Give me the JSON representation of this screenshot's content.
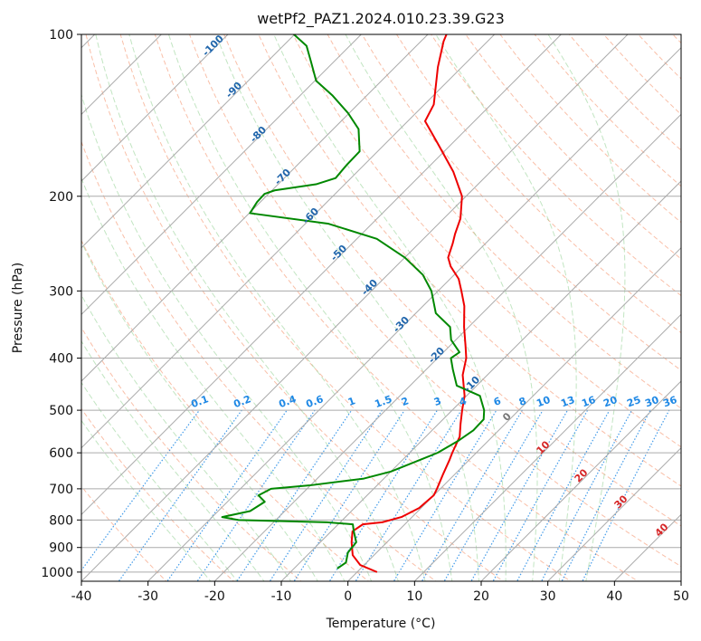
{
  "chart_data": {
    "type": "line",
    "title": "wetPf2_PAZ1.2024.010.23.39.G23",
    "xlabel": "Temperature (°C)",
    "ylabel": "Pressure (hPa)",
    "xlim": [
      -40,
      50
    ],
    "ylim": [
      1040,
      100
    ],
    "y_scale": "log",
    "skew": true,
    "grid": true,
    "x_ticks": [
      "-40",
      "-30",
      "-20",
      "-10",
      "0",
      "10",
      "20",
      "30",
      "40",
      "50"
    ],
    "y_ticks": [
      "100",
      "200",
      "300",
      "400",
      "500",
      "600",
      "700",
      "800",
      "900",
      "1000"
    ],
    "series": [
      {
        "color": "#ee0000",
        "points": [
          [
            1000,
            3
          ],
          [
            970,
            -0.6
          ],
          [
            930,
            -3.2
          ],
          [
            880,
            -5.3
          ],
          [
            840,
            -6.8
          ],
          [
            815,
            -6.3
          ],
          [
            808,
            -3.7
          ],
          [
            790,
            -1.6
          ],
          [
            760,
            -0.3
          ],
          [
            720,
            0
          ],
          [
            700,
            -0.5
          ],
          [
            660,
            -1.7
          ],
          [
            620,
            -2.9
          ],
          [
            600,
            -3.6
          ],
          [
            560,
            -4.9
          ],
          [
            530,
            -6.7
          ],
          [
            500,
            -8.5
          ],
          [
            470,
            -10.3
          ],
          [
            430,
            -13.7
          ],
          [
            400,
            -15.7
          ],
          [
            380,
            -17.6
          ],
          [
            350,
            -20.7
          ],
          [
            320,
            -23.8
          ],
          [
            300,
            -26.5
          ],
          [
            285,
            -28.7
          ],
          [
            270,
            -31.8
          ],
          [
            260,
            -33.5
          ],
          [
            245,
            -34.9
          ],
          [
            235,
            -36
          ],
          [
            220,
            -37.5
          ],
          [
            200,
            -40.6
          ],
          [
            180,
            -45.6
          ],
          [
            160,
            -52
          ],
          [
            145,
            -57.4
          ],
          [
            135,
            -58.6
          ],
          [
            115,
            -63.6
          ],
          [
            103,
            -66.6
          ],
          [
            100,
            -67.2
          ]
        ]
      },
      {
        "color": "#008800",
        "points": [
          [
            985,
            -3.5
          ],
          [
            960,
            -3.1
          ],
          [
            920,
            -4.3
          ],
          [
            880,
            -4.6
          ],
          [
            840,
            -6.6
          ],
          [
            815,
            -7.8
          ],
          [
            808,
            -12
          ],
          [
            800,
            -25.6
          ],
          [
            790,
            -28.5
          ],
          [
            770,
            -25.2
          ],
          [
            740,
            -24.4
          ],
          [
            720,
            -26.3
          ],
          [
            700,
            -25.4
          ],
          [
            690,
            -20.2
          ],
          [
            670,
            -13
          ],
          [
            650,
            -10
          ],
          [
            620,
            -7.5
          ],
          [
            600,
            -5.8
          ],
          [
            570,
            -4.5
          ],
          [
            545,
            -3.8
          ],
          [
            520,
            -3.9
          ],
          [
            500,
            -5.2
          ],
          [
            470,
            -8
          ],
          [
            450,
            -13
          ],
          [
            420,
            -16
          ],
          [
            400,
            -18
          ],
          [
            390,
            -17.6
          ],
          [
            370,
            -20.7
          ],
          [
            350,
            -22.8
          ],
          [
            330,
            -27
          ],
          [
            300,
            -31
          ],
          [
            280,
            -34.7
          ],
          [
            260,
            -40
          ],
          [
            240,
            -47
          ],
          [
            225,
            -56.5
          ],
          [
            215,
            -69.9
          ],
          [
            205,
            -70.5
          ],
          [
            198,
            -70.6
          ],
          [
            195,
            -69.6
          ],
          [
            190,
            -64.3
          ],
          [
            185,
            -62.3
          ],
          [
            175,
            -62.6
          ],
          [
            165,
            -62.7
          ],
          [
            150,
            -66.2
          ],
          [
            140,
            -70.2
          ],
          [
            130,
            -75.1
          ],
          [
            122,
            -79.8
          ],
          [
            112,
            -83.6
          ],
          [
            105,
            -86.5
          ],
          [
            100,
            -90.1
          ]
        ]
      }
    ],
    "isotherm_labels": [
      "-100",
      "-90",
      "-80",
      "-70",
      "-60",
      "-50",
      "-40",
      "-30",
      "-20",
      "-10",
      "0",
      "10",
      "20",
      "30",
      "40"
    ],
    "mixing_ratio_labels": [
      "0.1",
      "0.2",
      "0.4",
      "0.6",
      "1",
      "1.5",
      "2",
      "3",
      "4",
      "6",
      "8",
      "10",
      "13",
      "16",
      "20",
      "25",
      "30",
      "36"
    ]
  }
}
